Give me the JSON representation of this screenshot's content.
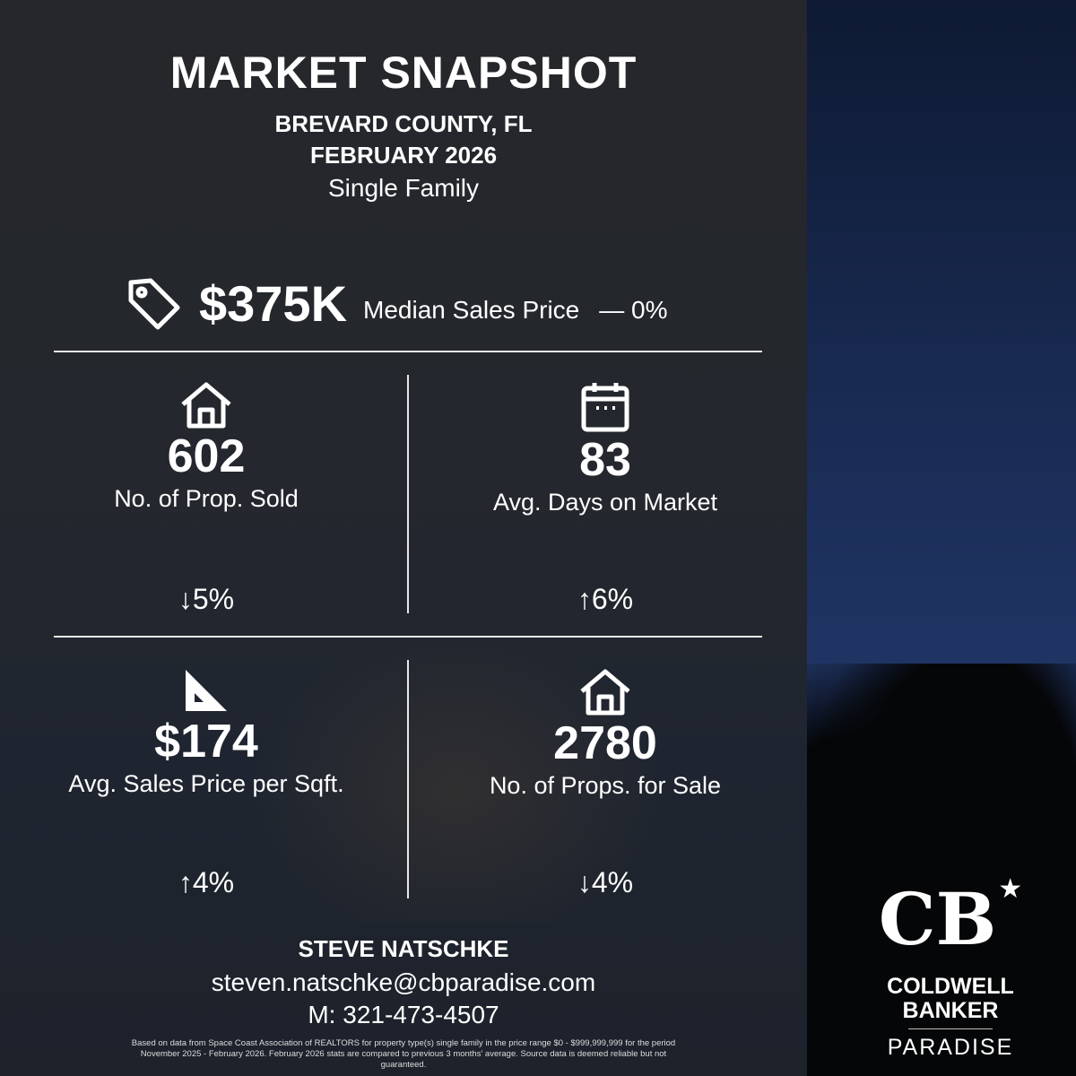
{
  "header": {
    "title": "MARKET SNAPSHOT",
    "location": "BREVARD COUNTY, FL",
    "period": "FEBRUARY 2026",
    "property_type": "Single Family"
  },
  "median": {
    "icon": "price-tag-icon",
    "value": "$375K",
    "label": "Median Sales Price",
    "change": "— 0%"
  },
  "stats": [
    {
      "icon": "house-icon",
      "value": "602",
      "label": "No. of Prop. Sold",
      "change": "5%",
      "direction": "down"
    },
    {
      "icon": "calendar-icon",
      "value": "83",
      "label": "Avg. Days on Market",
      "change": "6%",
      "direction": "up"
    },
    {
      "icon": "ruler-triangle-icon",
      "value": "$174",
      "label": "Avg. Sales Price per Sqft.",
      "change": "4%",
      "direction": "up"
    },
    {
      "icon": "house-icon",
      "value": "2780",
      "label": "No. of Props. for Sale",
      "change": "4%",
      "direction": "down"
    }
  ],
  "agent": {
    "name": "STEVE NATSCHKE",
    "email": "steven.natschke@cbparadise.com",
    "phone": "M: 321-473-4507"
  },
  "disclaimer": "Based on data from Space Coast Association of REALTORS for property type(s) single family in the price range $0 - $999,999,999 for the period November 2025 - February 2026. February 2026 stats are compared to previous 3 months' average. Source data is deemed reliable but not guaranteed.",
  "logo": {
    "mark": "CB",
    "line1": "COLDWELL",
    "line2": "BANKER",
    "line3": "PARADISE"
  }
}
